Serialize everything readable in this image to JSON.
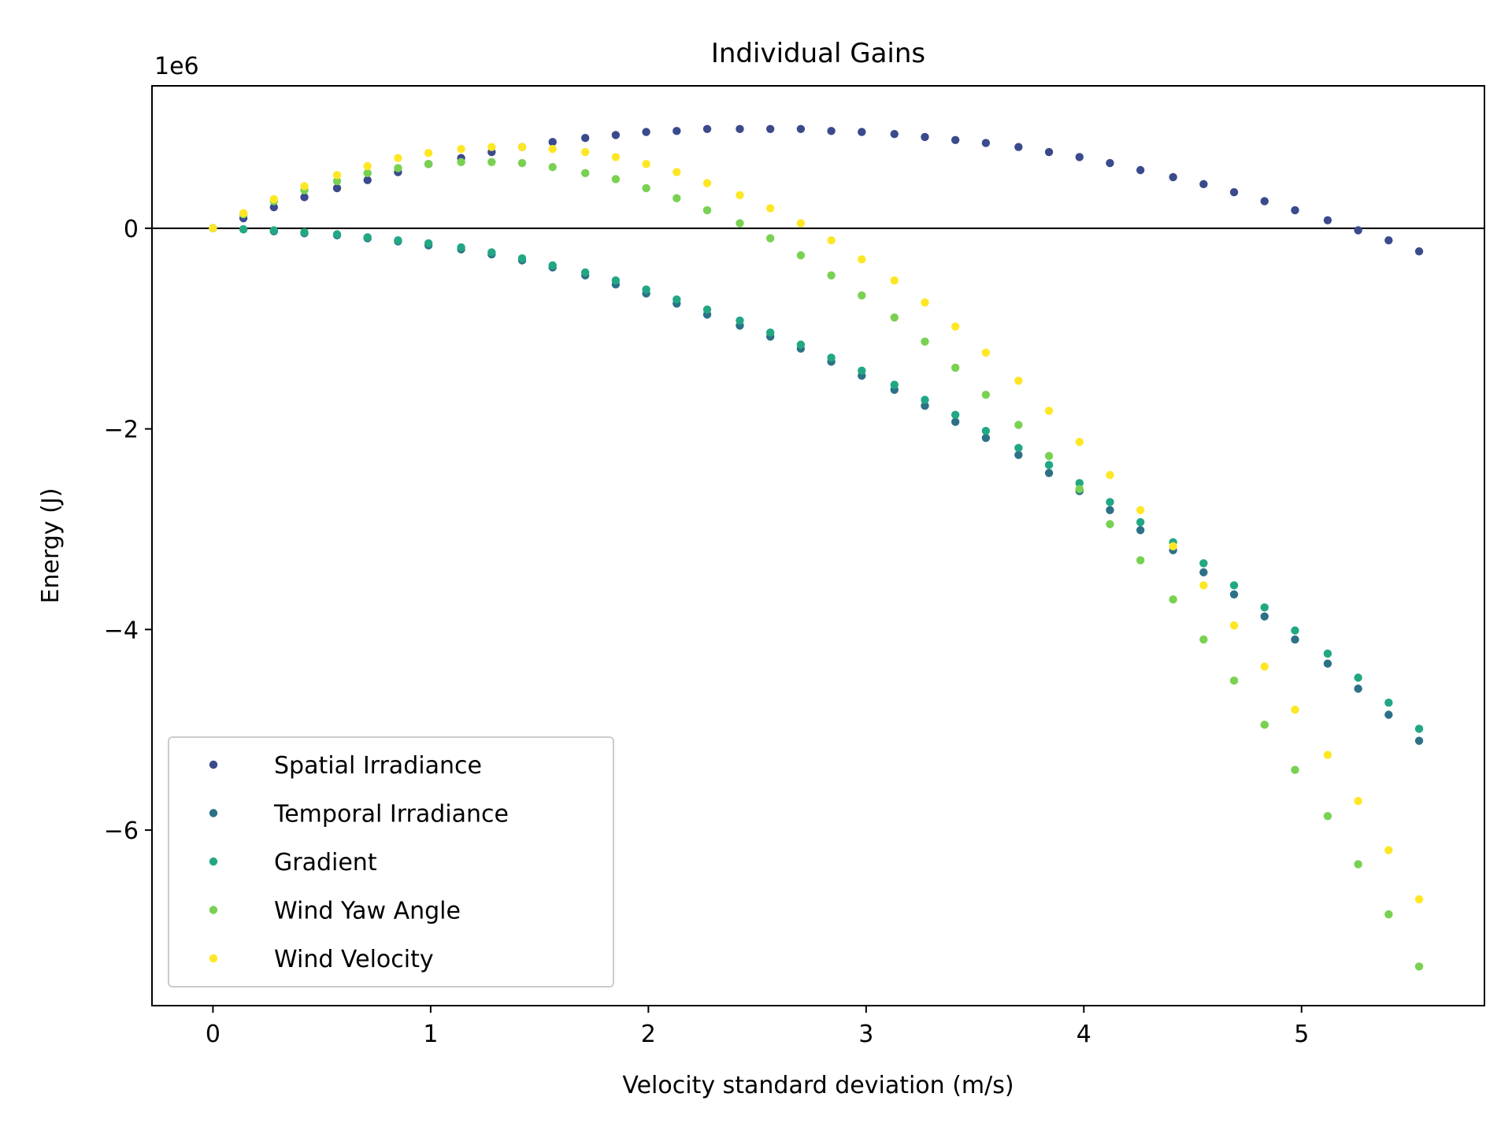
{
  "chart_data": {
    "type": "scatter",
    "title": "Individual Gains",
    "xlabel": "Velocity standard deviation (m/s)",
    "ylabel": "Energy (J)",
    "y_scale_label": "1e6",
    "xlim": [
      -0.28,
      5.84
    ],
    "ylim": [
      -7.75,
      1.42
    ],
    "xticks": [
      0,
      1,
      2,
      3,
      4,
      5
    ],
    "xtick_labels": [
      "0",
      "1",
      "2",
      "3",
      "4",
      "5"
    ],
    "yticks": [
      0,
      -2,
      -4,
      -6
    ],
    "ytick_labels": [
      "0",
      "−2",
      "−4",
      "−6"
    ],
    "zero_line": true,
    "grid": false,
    "legend_position": "lower-left",
    "x": [
      0,
      0.14,
      0.28,
      0.42,
      0.57,
      0.71,
      0.85,
      0.99,
      1.14,
      1.28,
      1.42,
      1.56,
      1.71,
      1.85,
      1.99,
      2.13,
      2.27,
      2.42,
      2.56,
      2.7,
      2.84,
      2.98,
      3.13,
      3.27,
      3.41,
      3.55,
      3.7,
      3.84,
      3.98,
      4.12,
      4.26,
      4.41,
      4.55,
      4.69,
      4.83,
      4.97,
      5.12,
      5.26,
      5.4,
      5.54
    ],
    "series": [
      {
        "name": "Spatial Irradiance",
        "color": "#3b4a8c",
        "values": [
          0,
          0.1,
          0.21,
          0.31,
          0.4,
          0.48,
          0.56,
          0.64,
          0.7,
          0.76,
          0.81,
          0.86,
          0.9,
          0.93,
          0.96,
          0.97,
          0.99,
          0.99,
          0.99,
          0.99,
          0.97,
          0.96,
          0.94,
          0.91,
          0.88,
          0.85,
          0.81,
          0.76,
          0.71,
          0.65,
          0.58,
          0.51,
          0.44,
          0.36,
          0.27,
          0.18,
          0.08,
          -0.02,
          -0.12,
          -0.23
        ]
      },
      {
        "name": "Temporal Irradiance",
        "color": "#2d7187",
        "values": [
          0,
          -0.01,
          -0.03,
          -0.05,
          -0.07,
          -0.1,
          -0.13,
          -0.17,
          -0.21,
          -0.26,
          -0.32,
          -0.39,
          -0.47,
          -0.56,
          -0.65,
          -0.75,
          -0.86,
          -0.97,
          -1.08,
          -1.2,
          -1.33,
          -1.47,
          -1.61,
          -1.77,
          -1.93,
          -2.09,
          -2.26,
          -2.44,
          -2.62,
          -2.81,
          -3.01,
          -3.21,
          -3.43,
          -3.65,
          -3.87,
          -4.1,
          -4.34,
          -4.59,
          -4.85,
          -5.11
        ]
      },
      {
        "name": "Gradient",
        "color": "#22a784",
        "values": [
          0,
          -0.01,
          -0.02,
          -0.04,
          -0.06,
          -0.09,
          -0.12,
          -0.15,
          -0.19,
          -0.24,
          -0.3,
          -0.37,
          -0.44,
          -0.52,
          -0.61,
          -0.71,
          -0.81,
          -0.92,
          -1.04,
          -1.16,
          -1.29,
          -1.42,
          -1.56,
          -1.71,
          -1.86,
          -2.02,
          -2.19,
          -2.36,
          -2.54,
          -2.73,
          -2.93,
          -3.13,
          -3.34,
          -3.56,
          -3.78,
          -4.01,
          -4.24,
          -4.48,
          -4.73,
          -4.99
        ]
      },
      {
        "name": "Wind Yaw Angle",
        "color": "#79d151",
        "values": [
          0,
          0.14,
          0.27,
          0.38,
          0.47,
          0.55,
          0.6,
          0.64,
          0.66,
          0.66,
          0.65,
          0.61,
          0.55,
          0.49,
          0.4,
          0.3,
          0.18,
          0.05,
          -0.1,
          -0.27,
          -0.47,
          -0.67,
          -0.89,
          -1.13,
          -1.39,
          -1.66,
          -1.96,
          -2.27,
          -2.6,
          -2.95,
          -3.31,
          -3.7,
          -4.1,
          -4.51,
          -4.95,
          -5.4,
          -5.86,
          -6.34,
          -6.84,
          -7.36
        ]
      },
      {
        "name": "Wind Velocity",
        "color": "#fde725",
        "values": [
          0,
          0.15,
          0.29,
          0.42,
          0.53,
          0.62,
          0.7,
          0.75,
          0.79,
          0.81,
          0.81,
          0.79,
          0.76,
          0.71,
          0.64,
          0.56,
          0.45,
          0.33,
          0.2,
          0.05,
          -0.12,
          -0.31,
          -0.52,
          -0.74,
          -0.98,
          -1.24,
          -1.52,
          -1.82,
          -2.13,
          -2.46,
          -2.81,
          -3.17,
          -3.56,
          -3.96,
          -4.37,
          -4.8,
          -5.25,
          -5.71,
          -6.2,
          -6.69
        ]
      }
    ]
  }
}
